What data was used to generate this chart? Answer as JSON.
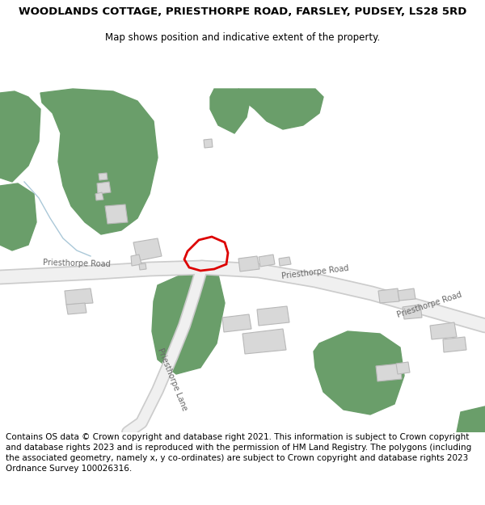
{
  "title": "WOODLANDS COTTAGE, PRIESTHORPE ROAD, FARSLEY, PUDSEY, LS28 5RD",
  "subtitle": "Map shows position and indicative extent of the property.",
  "footer": "Contains OS data © Crown copyright and database right 2021. This information is subject to Crown copyright and database rights 2023 and is reproduced with the permission of HM Land Registry. The polygons (including the associated geometry, namely x, y co-ordinates) are subject to Crown copyright and database rights 2023 Ordnance Survey 100026316.",
  "bg_color": "#ffffff",
  "green_color": "#6a9e6a",
  "road_color": "#f0f0f0",
  "road_outline": "#cccccc",
  "building_color": "#d8d8d8",
  "building_outline": "#b8b8b8",
  "plot_edge": "#dd0000",
  "stream_color": "#aac8d8",
  "title_fontsize": 9.5,
  "subtitle_fontsize": 8.5,
  "footer_fontsize": 7.5,
  "label_fontsize": 7,
  "label_color": "#666666"
}
